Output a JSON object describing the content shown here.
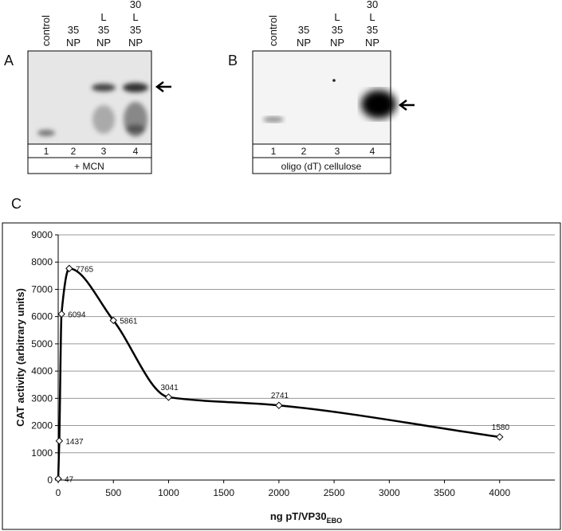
{
  "gels": [
    {
      "label": "A",
      "lanes": [
        [
          "control"
        ],
        [
          "35",
          "NP"
        ],
        [
          "L",
          "35",
          "NP"
        ],
        [
          "30",
          "L",
          "35",
          "NP"
        ]
      ],
      "lane_numbers": [
        "1",
        "2",
        "3",
        "4"
      ],
      "caption": "+ MCN"
    },
    {
      "label": "B",
      "lanes": [
        [
          "control"
        ],
        [
          "35",
          "NP"
        ],
        [
          "L",
          "35",
          "NP"
        ],
        [
          "30",
          "L",
          "35",
          "NP"
        ]
      ],
      "lane_numbers": [
        "1",
        "2",
        "3",
        "4"
      ],
      "caption": "oligo (dT) cellulose"
    }
  ],
  "panel_c_label": "C",
  "chart_data": {
    "type": "line",
    "y_label": "CAT activity (arbitrary units)",
    "x_label": "ng pT/VP30",
    "x_label_sub": "EBO",
    "x": [
      0,
      10,
      30,
      100,
      500,
      1000,
      2000,
      4000
    ],
    "values": [
      47,
      1437,
      6094,
      7765,
      5861,
      3041,
      2741,
      1580
    ],
    "color": "#000000",
    "xlim": [
      0,
      4500
    ],
    "xticks": [
      0,
      500,
      1000,
      1500,
      2000,
      2500,
      3000,
      3500,
      4000
    ],
    "ylim": [
      0,
      9000
    ],
    "yticks": [
      0,
      1000,
      2000,
      3000,
      4000,
      5000,
      6000,
      7000,
      8000,
      9000
    ],
    "grid": true
  }
}
